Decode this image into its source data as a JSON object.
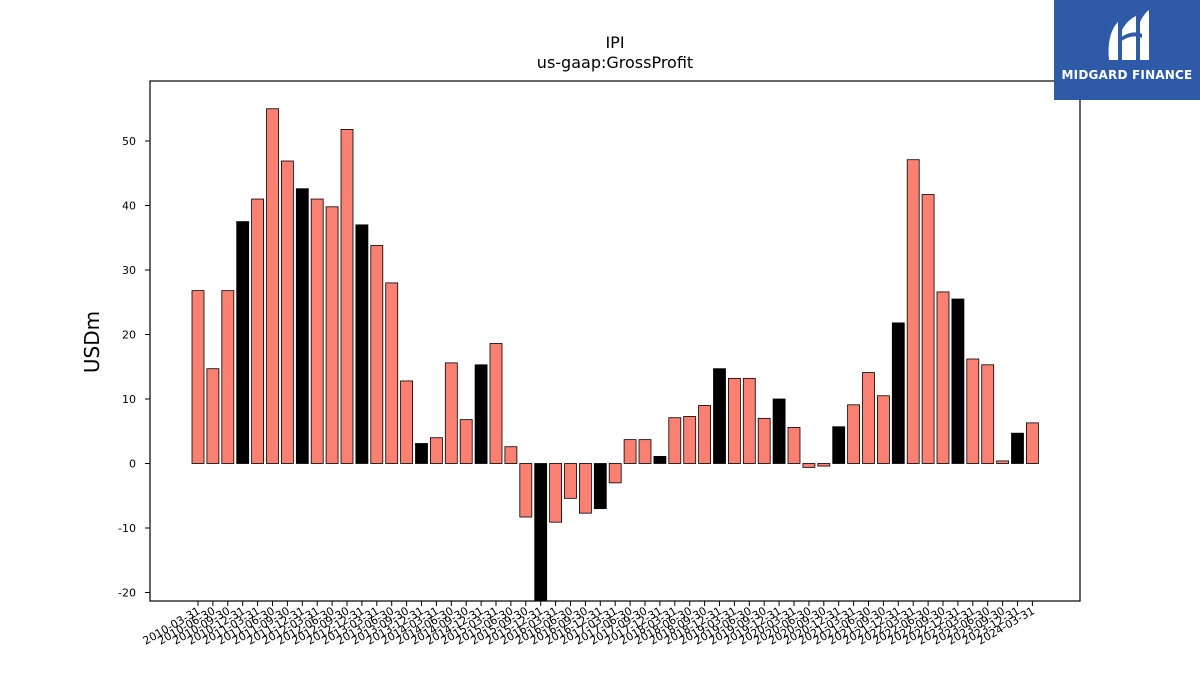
{
  "chart_data": {
    "type": "bar",
    "title": "IPI",
    "subtitle": "us-gaap:GrossProfit",
    "xlabel": "",
    "ylabel": "USDm",
    "ylim": [
      -21.5,
      59
    ],
    "yticks": [
      -20,
      -10,
      0,
      10,
      20,
      30,
      40,
      50
    ],
    "grid": false,
    "colors": {
      "normal": "#fa8072",
      "highlight": "#000000",
      "edge": "#000000"
    },
    "categories": [
      "2010-03-31",
      "2010-06-30",
      "2010-09-30",
      "2010-12-31",
      "2011-03-31",
      "2011-06-30",
      "2011-09-30",
      "2011-12-31",
      "2012-03-31",
      "2012-06-30",
      "2012-09-30",
      "2012-12-31",
      "2013-03-31",
      "2013-06-30",
      "2013-09-30",
      "2013-12-31",
      "2014-03-31",
      "2014-06-30",
      "2014-09-30",
      "2014-12-31",
      "2015-03-31",
      "2015-06-30",
      "2015-09-30",
      "2015-12-31",
      "2016-03-31",
      "2016-06-30",
      "2016-09-30",
      "2016-12-31",
      "2017-03-31",
      "2017-06-30",
      "2017-09-30",
      "2017-12-31",
      "2018-03-31",
      "2018-06-30",
      "2018-09-30",
      "2018-12-31",
      "2019-03-31",
      "2019-06-30",
      "2019-09-30",
      "2019-12-31",
      "2020-03-31",
      "2020-06-30",
      "2020-09-30",
      "2020-12-31",
      "2021-03-31",
      "2021-06-30",
      "2021-09-30",
      "2021-12-31",
      "2022-03-31",
      "2022-06-30",
      "2022-09-30",
      "2022-12-31",
      "2023-03-31",
      "2023-06-30",
      "2023-09-30",
      "2023-12-31",
      "2024-03-31"
    ],
    "values": [
      26.8,
      14.7,
      26.8,
      37.5,
      41.0,
      55.0,
      46.9,
      42.6,
      41.0,
      39.8,
      51.8,
      37.0,
      33.8,
      28.0,
      12.8,
      3.1,
      4.0,
      15.6,
      6.8,
      15.3,
      18.6,
      2.6,
      -8.3,
      -21.5,
      -9.1,
      -5.4,
      -7.7,
      -7.0,
      -3.0,
      3.7,
      3.7,
      1.1,
      7.1,
      7.3,
      9.0,
      14.7,
      13.2,
      13.2,
      7.0,
      10.0,
      5.6,
      -0.6,
      -0.4,
      5.7,
      9.1,
      14.1,
      10.5,
      21.8,
      47.1,
      41.7,
      26.6,
      25.5,
      16.2,
      15.3,
      0.4,
      4.7,
      6.3
    ],
    "highlight_indices": [
      3,
      7,
      11,
      15,
      19,
      23,
      27,
      31,
      35,
      39,
      43,
      47,
      51,
      55
    ]
  },
  "logo": {
    "brand_text": "MIDGARD FINANCE",
    "icon": "midgard-logo-icon"
  }
}
